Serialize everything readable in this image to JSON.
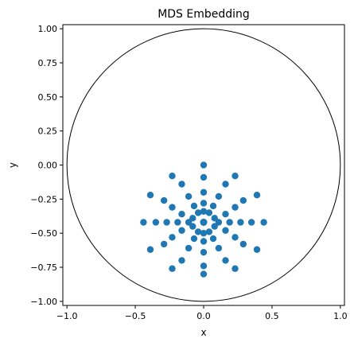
{
  "chart_data": {
    "type": "scatter",
    "title": "MDS Embedding",
    "xlabel": "x",
    "ylabel": "y",
    "xlim": [
      -1.03,
      1.03
    ],
    "ylim": [
      -1.03,
      1.03
    ],
    "xticks": [
      -1.0,
      -0.5,
      0.0,
      0.5,
      1.0
    ],
    "xtick_labels": [
      "−1.0",
      "−0.5",
      "0.0",
      "0.5",
      "1.0"
    ],
    "yticks": [
      -1.0,
      -0.75,
      -0.5,
      -0.25,
      0.0,
      0.25,
      0.5,
      0.75,
      1.0
    ],
    "ytick_labels": [
      "−1.00",
      "−0.75",
      "−0.50",
      "−0.25",
      "0.00",
      "0.25",
      "0.50",
      "0.75",
      "1.00"
    ],
    "grid": false,
    "legend": "none",
    "colors": {
      "points": "#1f77b4",
      "boundary": "#000000"
    },
    "boundary_circle": {
      "cx": 0,
      "cy": 0,
      "r": 1
    },
    "series": [
      {
        "x": [
          0.0,
          0.23,
          0.39,
          0.44,
          0.39,
          0.23,
          0.0,
          -0.23,
          -0.39,
          -0.44,
          -0.39,
          -0.23,
          0.0,
          0.16,
          0.29,
          0.35,
          0.29,
          0.16,
          0.0,
          -0.16,
          -0.29,
          -0.35,
          -0.29,
          -0.16,
          0.0,
          0.11,
          0.23,
          0.27,
          0.23,
          0.11,
          0.0,
          -0.11,
          -0.23,
          -0.27,
          -0.23,
          -0.11,
          0.0,
          0.07,
          0.16,
          0.19,
          0.16,
          0.07,
          0.0,
          -0.07,
          -0.16,
          -0.19,
          -0.16,
          -0.07,
          0.0,
          0.04,
          0.08,
          0.11,
          0.08,
          0.04,
          0.0,
          -0.04,
          -0.08,
          -0.11,
          -0.08,
          -0.04,
          0.0,
          0.0,
          0.0,
          0.0,
          0.0,
          0.0,
          0.0,
          0.0,
          0.0,
          0.0,
          0.0,
          0.0,
          0.0,
          0.0,
          0.0,
          0.0,
          0.0,
          0.0,
          0.0,
          0.0,
          0.0,
          0.0,
          0.0,
          0.0,
          0.0,
          0.0,
          0.0,
          0.0,
          0.0,
          0.0,
          0.0,
          0.0,
          0.0,
          0.0,
          0.0,
          0.0
        ],
        "y": [
          0.0,
          -0.08,
          -0.22,
          -0.42,
          -0.62,
          -0.76,
          -0.8,
          -0.76,
          -0.62,
          -0.42,
          -0.22,
          -0.08,
          -0.09,
          -0.14,
          -0.26,
          -0.42,
          -0.58,
          -0.7,
          -0.74,
          -0.7,
          -0.58,
          -0.42,
          -0.26,
          -0.14,
          -0.2,
          -0.23,
          -0.31,
          -0.42,
          -0.53,
          -0.61,
          -0.64,
          -0.61,
          -0.53,
          -0.42,
          -0.31,
          -0.23,
          -0.28,
          -0.3,
          -0.36,
          -0.42,
          -0.48,
          -0.54,
          -0.56,
          -0.54,
          -0.48,
          -0.42,
          -0.36,
          -0.3,
          -0.34,
          -0.35,
          -0.39,
          -0.42,
          -0.45,
          -0.49,
          -0.5,
          -0.49,
          -0.45,
          -0.42,
          -0.39,
          -0.35,
          -0.42,
          -0.42,
          -0.42,
          -0.42,
          -0.42,
          -0.42,
          -0.42,
          -0.42,
          -0.42,
          -0.42,
          -0.42,
          -0.42,
          -0.42,
          -0.42,
          -0.42,
          -0.42,
          -0.42,
          -0.42,
          -0.42,
          -0.42,
          -0.42,
          -0.42,
          -0.42,
          -0.42,
          -0.42,
          -0.42,
          -0.42,
          -0.42,
          -0.42,
          -0.42,
          -0.42,
          -0.42,
          -0.42,
          -0.42,
          -0.42,
          -0.42
        ]
      }
    ]
  }
}
